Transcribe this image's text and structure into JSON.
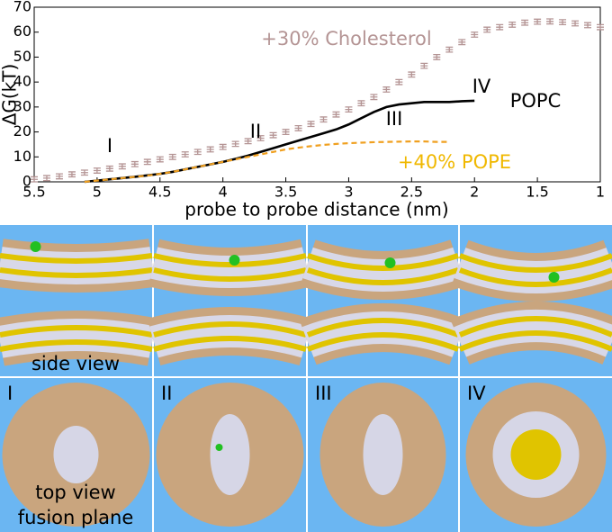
{
  "chart_data": {
    "type": "line",
    "xlabel": "probe to probe distance (nm)",
    "ylabel": "ΔG(kT)",
    "xlim": [
      5.5,
      1
    ],
    "ylim": [
      0,
      70
    ],
    "xticks": [
      5.5,
      5,
      4.5,
      4,
      3.5,
      3,
      2.5,
      2,
      1.5,
      1
    ],
    "yticks": [
      0,
      10,
      20,
      30,
      40,
      50,
      60,
      70
    ],
    "annotations": [
      "I",
      "II",
      "III",
      "IV"
    ],
    "series": [
      {
        "name": "+30% Cholesterol",
        "color": "#b49494",
        "style": "errorbar",
        "x": [
          5.5,
          5.4,
          5.3,
          5.2,
          5.1,
          5.0,
          4.9,
          4.8,
          4.7,
          4.6,
          4.5,
          4.4,
          4.3,
          4.2,
          4.1,
          4.0,
          3.9,
          3.8,
          3.7,
          3.6,
          3.5,
          3.4,
          3.3,
          3.2,
          3.1,
          3.0,
          2.9,
          2.8,
          2.7,
          2.6,
          2.5,
          2.4,
          2.3,
          2.2,
          2.1,
          2.0,
          1.9,
          1.8,
          1.7,
          1.6,
          1.5,
          1.4,
          1.3,
          1.2,
          1.1,
          1.0
        ],
        "values": [
          1,
          1.5,
          2.2,
          3,
          3.7,
          4.5,
          5.3,
          6.2,
          7.1,
          8,
          9,
          10,
          11,
          12,
          13,
          14,
          15.2,
          16.3,
          17.5,
          18.7,
          20,
          21.5,
          23.2,
          25,
          27,
          29,
          31.5,
          34,
          37,
          40,
          43,
          46.5,
          50,
          53,
          56,
          59,
          61,
          62,
          63,
          63.8,
          64.2,
          64.3,
          64,
          63.5,
          62.8,
          62
        ],
        "errors": [
          1,
          1,
          1,
          1,
          1,
          1,
          1,
          1,
          1,
          1,
          1,
          1,
          1,
          1,
          1,
          1,
          1,
          1,
          1,
          1,
          1,
          1,
          1,
          1,
          1,
          1,
          1,
          1,
          1,
          1,
          1,
          1,
          1,
          1,
          1,
          1,
          1,
          1,
          1,
          1,
          1,
          1,
          1,
          1,
          1,
          1
        ]
      },
      {
        "name": "POPC",
        "color": "#000000",
        "style": "solid",
        "x": [
          5.1,
          5.0,
          4.9,
          4.8,
          4.7,
          4.6,
          4.5,
          4.4,
          4.3,
          4.2,
          4.1,
          4.0,
          3.9,
          3.8,
          3.7,
          3.6,
          3.5,
          3.4,
          3.3,
          3.2,
          3.1,
          3.0,
          2.9,
          2.8,
          2.7,
          2.6,
          2.5,
          2.4,
          2.3,
          2.2,
          2.1,
          2.0
        ],
        "values": [
          0,
          0.5,
          1,
          1.5,
          2,
          2.6,
          3.2,
          4,
          5,
          6,
          7,
          8,
          9.2,
          10.5,
          12,
          13.5,
          15,
          16.5,
          18,
          19.5,
          21,
          23,
          25.5,
          28,
          30,
          31,
          31.5,
          32,
          32,
          32,
          32.3,
          32.5
        ]
      },
      {
        "name": "+40% POPE",
        "color": "#f0a020",
        "style": "dashed",
        "x": [
          5.1,
          5.0,
          4.9,
          4.8,
          4.7,
          4.6,
          4.5,
          4.4,
          4.3,
          4.2,
          4.1,
          4.0,
          3.9,
          3.8,
          3.7,
          3.6,
          3.5,
          3.4,
          3.3,
          3.2,
          3.1,
          3.0,
          2.9,
          2.8,
          2.7,
          2.6,
          2.5,
          2.4,
          2.3,
          2.2
        ],
        "values": [
          0,
          0.5,
          1,
          1.5,
          2,
          2.5,
          3.2,
          4,
          5,
          6,
          7,
          8,
          9,
          10,
          11,
          12,
          13,
          13.7,
          14.3,
          14.8,
          15.2,
          15.5,
          15.7,
          15.9,
          16,
          16.1,
          16.2,
          16.2,
          16,
          16
        ]
      }
    ]
  },
  "panels": {
    "side_label": "side view",
    "top_label": [
      "top view",
      "fusion plane"
    ],
    "roman": [
      "I",
      "II",
      "III",
      "IV"
    ]
  }
}
